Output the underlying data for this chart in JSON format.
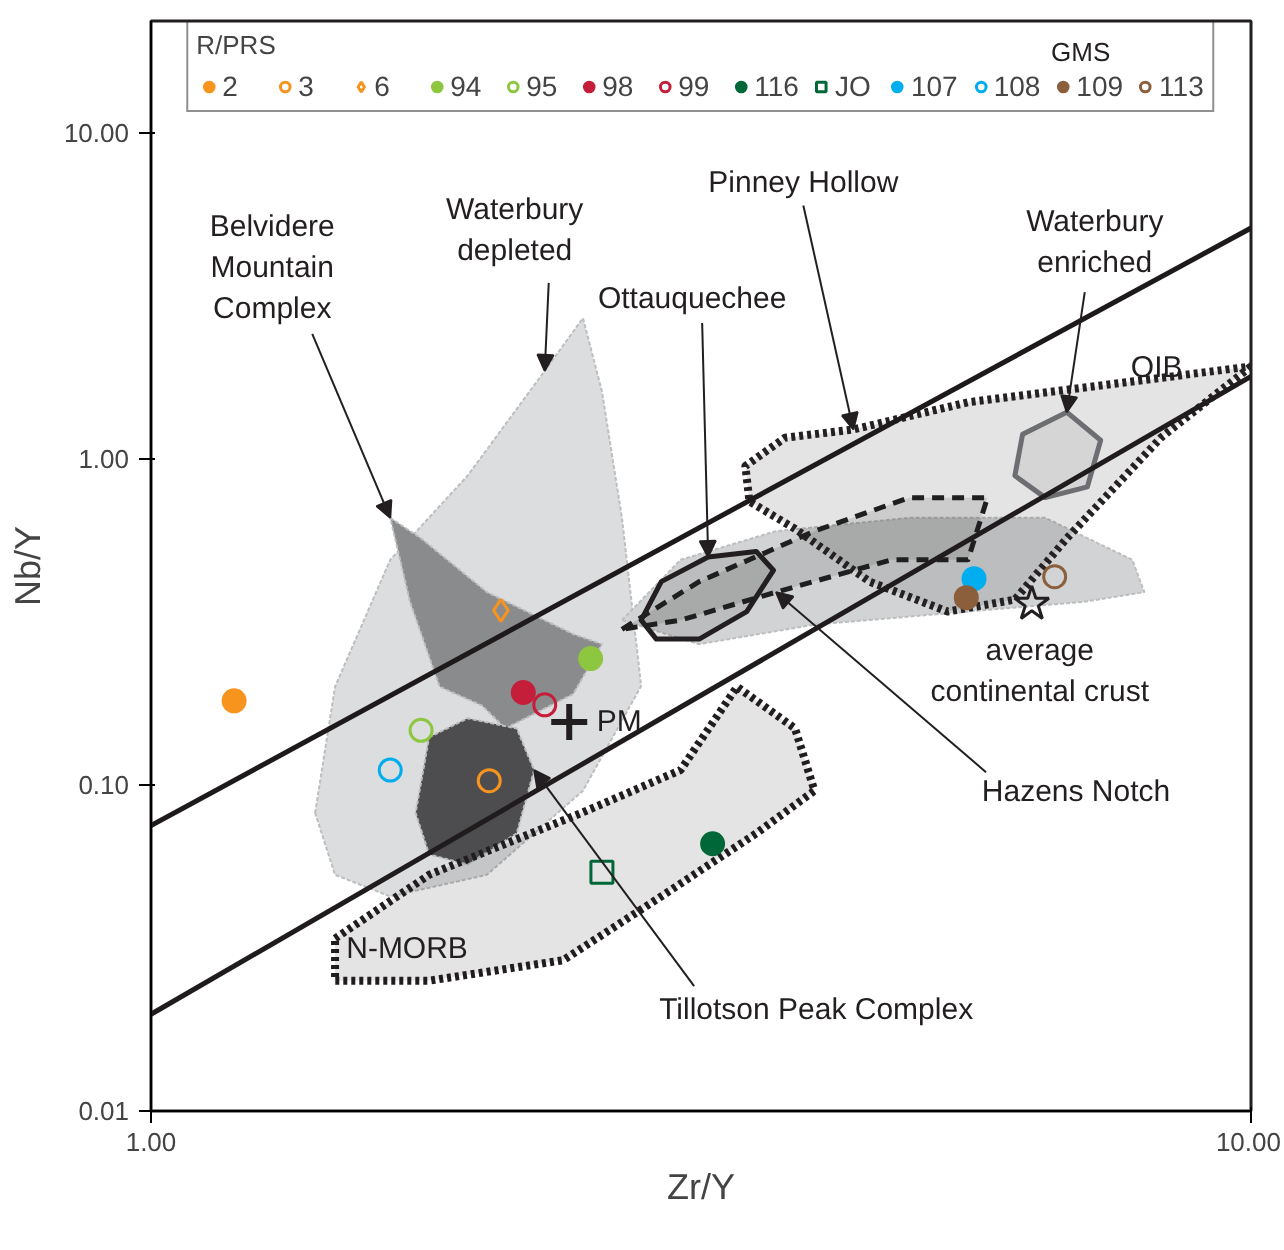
{
  "chart_data": {
    "type": "scatter",
    "xlabel": "Zr/Y",
    "ylabel": "Nb/Y",
    "log": "xy",
    "xlim": [
      1,
      10
    ],
    "ylim": [
      0.01,
      22
    ],
    "xticks": [
      {
        "value": 1,
        "label": "1.00"
      },
      {
        "value": 10,
        "label": "10.00"
      }
    ],
    "yticks": [
      {
        "value": 0.01,
        "label": "0.01"
      },
      {
        "value": 0.1,
        "label": "0.10"
      },
      {
        "value": 1,
        "label": "1.00"
      },
      {
        "value": 10,
        "label": "10.00"
      }
    ],
    "grid": false,
    "legend": "top",
    "legend_title": "R/PRS",
    "series": [
      {
        "type": "area",
        "color": "#dcddde",
        "x": [
          1.41,
          1.47,
          1.65,
          1.94,
          2.28,
          2.47,
          2.57,
          2.68,
          2.79,
          2.47,
          2.02,
          1.65,
          1.47
        ],
        "values": [
          0.082,
          0.2,
          0.49,
          0.887,
          1.86,
          2.7,
          1.61,
          0.659,
          0.201,
          0.096,
          0.053,
          0.0455,
          0.053
        ]
      },
      {
        "type": "area",
        "color": "#d1d3d4",
        "x": [
          2.68,
          3.03,
          3.7,
          4.89,
          6.5,
          7.8,
          8.0,
          7.04,
          5.53,
          4.01,
          3.15
        ],
        "values": [
          0.32,
          0.49,
          0.6,
          0.659,
          0.659,
          0.49,
          0.39,
          0.364,
          0.34,
          0.31,
          0.27
        ]
      },
      {
        "type": "area",
        "color": "#8a8b8d",
        "x": [
          1.65,
          1.76,
          2.02,
          2.42,
          2.57,
          2.42,
          2.1,
          2.0,
          1.83,
          1.72
        ],
        "values": [
          0.659,
          0.57,
          0.39,
          0.29,
          0.27,
          0.19,
          0.149,
          0.175,
          0.2,
          0.364
        ]
      },
      {
        "type": "area",
        "color": "#4d4d4f",
        "x": [
          1.79,
          1.94,
          2.15,
          2.23,
          2.15,
          1.94,
          1.79,
          1.74
        ],
        "values": [
          0.14,
          0.16,
          0.149,
          0.111,
          0.071,
          0.057,
          0.0612,
          0.082
        ]
      },
      {
        "type": "area",
        "color": "#231f20",
        "line_style": "solid",
        "x": [
          2.79,
          2.91,
          3.21,
          3.55,
          3.68,
          3.48,
          3.15,
          2.88,
          2.79
        ],
        "values": [
          0.32,
          0.42,
          0.5,
          0.52,
          0.455,
          0.34,
          0.28,
          0.28,
          0.32
        ]
      },
      {
        "type": "area",
        "color": "#1f1f1f",
        "line_style": "dashed",
        "x": [
          2.68,
          3.15,
          4.01,
          4.89,
          5.76,
          5.53,
          4.71,
          3.7,
          3.03,
          2.68
        ],
        "values": [
          0.3,
          0.42,
          0.6,
          0.76,
          0.76,
          0.49,
          0.49,
          0.39,
          0.32,
          0.3
        ]
      },
      {
        "type": "area",
        "color": "#252122",
        "line_style": "dotted",
        "x": [
          10,
          8.28,
          6.8,
          6.1,
          5.3,
          4.5,
          3.85,
          3.5,
          3.47,
          3.77,
          4.35,
          5.53
        ],
        "values": [
          1.92,
          1.16,
          0.57,
          0.37,
          0.34,
          0.42,
          0.61,
          0.74,
          0.95,
          1.16,
          1.23,
          1.49
        ]
      },
      {
        "type": "area",
        "color": "#6d6e71",
        "line_style": "solid",
        "x": [
          6.2,
          6.8,
          7.3,
          7.1,
          6.5,
          6.1,
          6.2
        ],
        "values": [
          1.19,
          1.39,
          1.14,
          0.82,
          0.76,
          0.887,
          1.19
        ]
      },
      {
        "type": "area",
        "color": "#211d1e",
        "line_style": "dotted",
        "x": [
          1.47,
          1.79,
          2.47,
          3.03,
          3.41,
          3.85,
          4.01,
          3.55,
          2.91,
          2.37,
          1.79,
          1.47,
          1.47
        ],
        "values": [
          0.0338,
          0.053,
          0.0824,
          0.111,
          0.2,
          0.149,
          0.096,
          0.071,
          0.0455,
          0.029,
          0.0251,
          0.0251,
          0.0338
        ]
      },
      {
        "type": "line",
        "color": "#1e1a1b",
        "line_style": "solid",
        "x": [
          1,
          10
        ],
        "values": [
          0.075,
          5.1
        ]
      },
      {
        "type": "line",
        "color": "#201c1d",
        "line_style": "solid",
        "x": [
          1,
          10
        ],
        "values": [
          0.0198,
          1.79
        ]
      },
      {
        "type": "scatter",
        "marker": "cross",
        "color": "#231f20",
        "x": [
          2.4
        ],
        "values": [
          0.156
        ]
      },
      {
        "type": "scatter",
        "marker": "star_open",
        "color": "#231f20",
        "x": [
          6.32
        ],
        "values": [
          0.359
        ]
      },
      {
        "name": "2",
        "marker": "circle",
        "color": "#f7941d",
        "x": [
          1.19
        ],
        "values": [
          0.181
        ]
      },
      {
        "name": "3",
        "marker": "circle_open",
        "color": "#f7941d",
        "x": [
          2.03
        ],
        "values": [
          0.103
        ]
      },
      {
        "name": "6",
        "marker": "diamond_open",
        "color": "#f7941d",
        "x": [
          2.08
        ],
        "values": [
          0.343
        ]
      },
      {
        "name": "94",
        "marker": "circle",
        "color": "#8dc63f",
        "x": [
          2.51
        ],
        "values": [
          0.244
        ]
      },
      {
        "name": "95",
        "marker": "circle_open",
        "color": "#8dc63f",
        "x": [
          1.76
        ],
        "values": [
          0.147
        ]
      },
      {
        "name": "98",
        "marker": "circle",
        "color": "#c41e3a",
        "x": [
          2.18
        ],
        "values": [
          0.192
        ]
      },
      {
        "name": "99",
        "marker": "circle_open",
        "color": "#c41e3a",
        "x": [
          2.28
        ],
        "values": [
          0.176
        ]
      },
      {
        "name": "116",
        "marker": "circle",
        "color": "#006838",
        "x": [
          3.24
        ],
        "values": [
          0.066
        ]
      },
      {
        "name": "JO",
        "marker": "square_open",
        "color": "#006838",
        "x": [
          2.57
        ],
        "values": [
          0.054
        ]
      },
      {
        "name": "107",
        "marker": "circle",
        "color": "#00aeef",
        "x": [
          5.6
        ],
        "values": [
          0.429
        ]
      },
      {
        "name": "108",
        "marker": "circle_open",
        "color": "#00aeef",
        "x": [
          1.65
        ],
        "values": [
          0.111
        ]
      },
      {
        "name": "109",
        "marker": "circle",
        "color": "#8b5e3c",
        "x": [
          5.51
        ],
        "values": [
          0.375
        ]
      },
      {
        "name": "113",
        "marker": "circle_open",
        "color": "#8b5e3c",
        "x": [
          6.63
        ],
        "values": [
          0.435
        ]
      }
    ],
    "annotations": [
      "GMS",
      {
        "text": "Belvidere\nMountain\nComplex",
        "x": 1.65,
        "y": 0.659
      },
      {
        "text": "Waterbury\ndepleted",
        "x": 2.28,
        "y": 1.86
      },
      {
        "text": "Pinney Hollow",
        "x": 4.35,
        "y": 1.23
      },
      {
        "text": "Waterbury\nenriched",
        "x": 6.8,
        "y": 1.39
      },
      {
        "text": "Ottauquechee",
        "x": 3.21,
        "y": 0.5
      },
      {
        "text": "OIB",
        "x": 7.3,
        "y": 1.14
      },
      {
        "text": "PM",
        "x": 2.4,
        "y": 0.156
      },
      {
        "text": "average\ncontinental crust",
        "x": 6.32,
        "y": 0.359
      },
      {
        "text": "Hazens Notch",
        "x": 3.7,
        "y": 0.39
      },
      {
        "text": "N-MORB",
        "x": 1.47,
        "y": 0.0338
      },
      {
        "text": "Tillotson Peak Complex",
        "x": 2.23,
        "y": 0.111
      }
    ]
  }
}
